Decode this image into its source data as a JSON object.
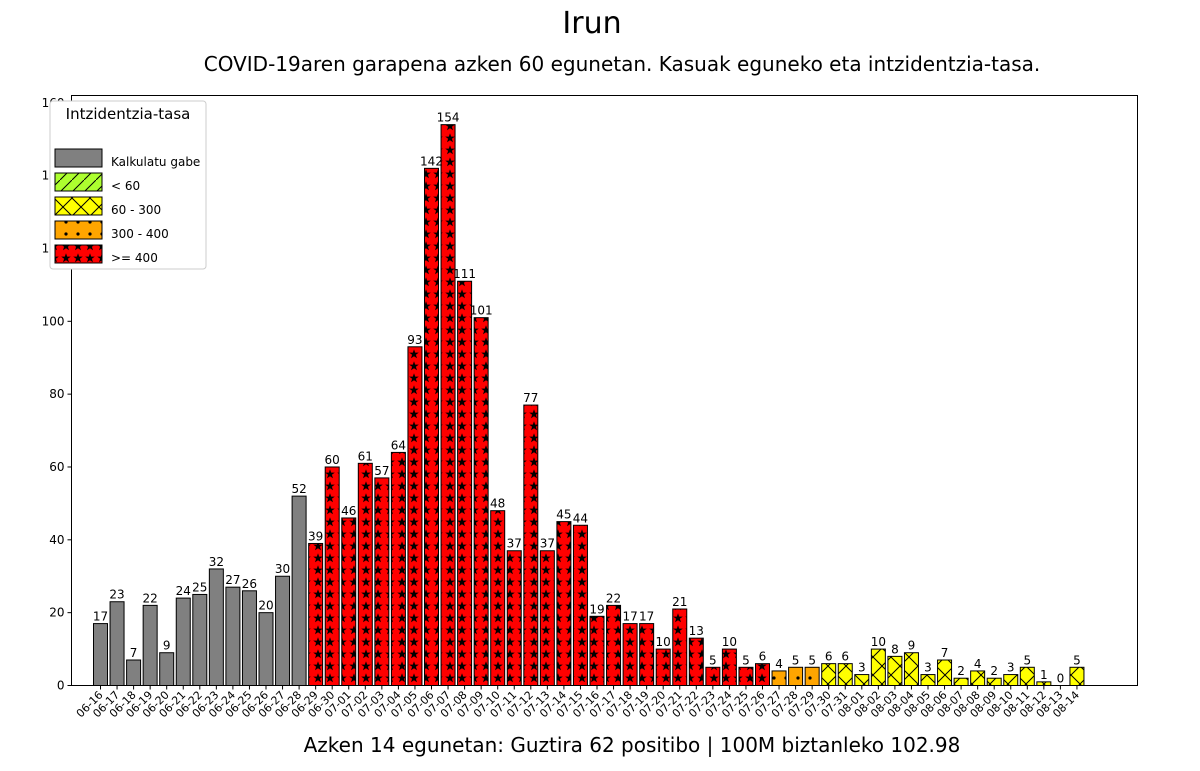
{
  "title": "Irun",
  "subtitle": "COVID-19aren garapena azken 60 egunetan. Kasuak eguneko eta intzidentzia-tasa.",
  "footer": "Azken 14 egunetan: Guztira 62 positibo | 100M biztanleko 102.98",
  "legend": {
    "title": "Intzidentzia-tasa",
    "items": [
      {
        "key": "none",
        "label": "Kalkulatu gabe",
        "color": "#808080"
      },
      {
        "key": "lt60",
        "label": "< 60",
        "color": "#adff2f"
      },
      {
        "key": "60-300",
        "label": "60 - 300",
        "color": "#ffff00"
      },
      {
        "key": "300-400",
        "label": "300 - 400",
        "color": "#ffa500"
      },
      {
        "key": "ge400",
        "label": ">= 400",
        "color": "#ff0000"
      }
    ]
  },
  "chart_data": {
    "type": "bar",
    "title": "Irun",
    "subtitle": "COVID-19aren garapena azken 60 egunetan. Kasuak eguneko eta intzidentzia-tasa.",
    "xlabel": "Azken 14 egunetan: Guztira 62 positibo | 100M biztanleko 102.98",
    "ylabel": "",
    "ylim": [
      0,
      162
    ],
    "yticks": [
      0,
      20,
      40,
      60,
      80,
      100,
      120,
      140,
      160
    ],
    "legend_position": "top-left",
    "categories": [
      "06-16",
      "06-17",
      "06-18",
      "06-19",
      "06-20",
      "06-21",
      "06-22",
      "06-23",
      "06-24",
      "06-25",
      "06-26",
      "06-27",
      "06-28",
      "06-29",
      "06-30",
      "07-01",
      "07-02",
      "07-03",
      "07-04",
      "07-05",
      "07-06",
      "07-07",
      "07-08",
      "07-09",
      "07-10",
      "07-11",
      "07-12",
      "07-13",
      "07-14",
      "07-15",
      "07-16",
      "07-17",
      "07-18",
      "07-19",
      "07-20",
      "07-21",
      "07-22",
      "07-23",
      "07-24",
      "07-25",
      "07-26",
      "07-27",
      "07-28",
      "07-29",
      "07-30",
      "07-31",
      "08-01",
      "08-02",
      "08-03",
      "08-04",
      "08-05",
      "08-06",
      "08-07",
      "08-08",
      "08-09",
      "08-10",
      "08-11",
      "08-12",
      "08-13",
      "08-14"
    ],
    "values": [
      17,
      23,
      7,
      22,
      9,
      24,
      25,
      32,
      27,
      26,
      20,
      30,
      52,
      39,
      60,
      46,
      61,
      57,
      64,
      93,
      142,
      154,
      111,
      101,
      48,
      37,
      77,
      37,
      45,
      44,
      19,
      22,
      17,
      17,
      10,
      21,
      13,
      5,
      10,
      5,
      6,
      4,
      5,
      5,
      6,
      6,
      3,
      10,
      8,
      9,
      3,
      7,
      2,
      4,
      2,
      3,
      5,
      1,
      0,
      5
    ],
    "rate_class": [
      "none",
      "none",
      "none",
      "none",
      "none",
      "none",
      "none",
      "none",
      "none",
      "none",
      "none",
      "none",
      "none",
      "ge400",
      "ge400",
      "ge400",
      "ge400",
      "ge400",
      "ge400",
      "ge400",
      "ge400",
      "ge400",
      "ge400",
      "ge400",
      "ge400",
      "ge400",
      "ge400",
      "ge400",
      "ge400",
      "ge400",
      "ge400",
      "ge400",
      "ge400",
      "ge400",
      "ge400",
      "ge400",
      "ge400",
      "ge400",
      "ge400",
      "ge400",
      "ge400",
      "300-400",
      "300-400",
      "300-400",
      "60-300",
      "60-300",
      "60-300",
      "60-300",
      "60-300",
      "60-300",
      "60-300",
      "60-300",
      "60-300",
      "60-300",
      "60-300",
      "60-300",
      "60-300",
      "60-300",
      "60-300",
      "60-300"
    ]
  }
}
